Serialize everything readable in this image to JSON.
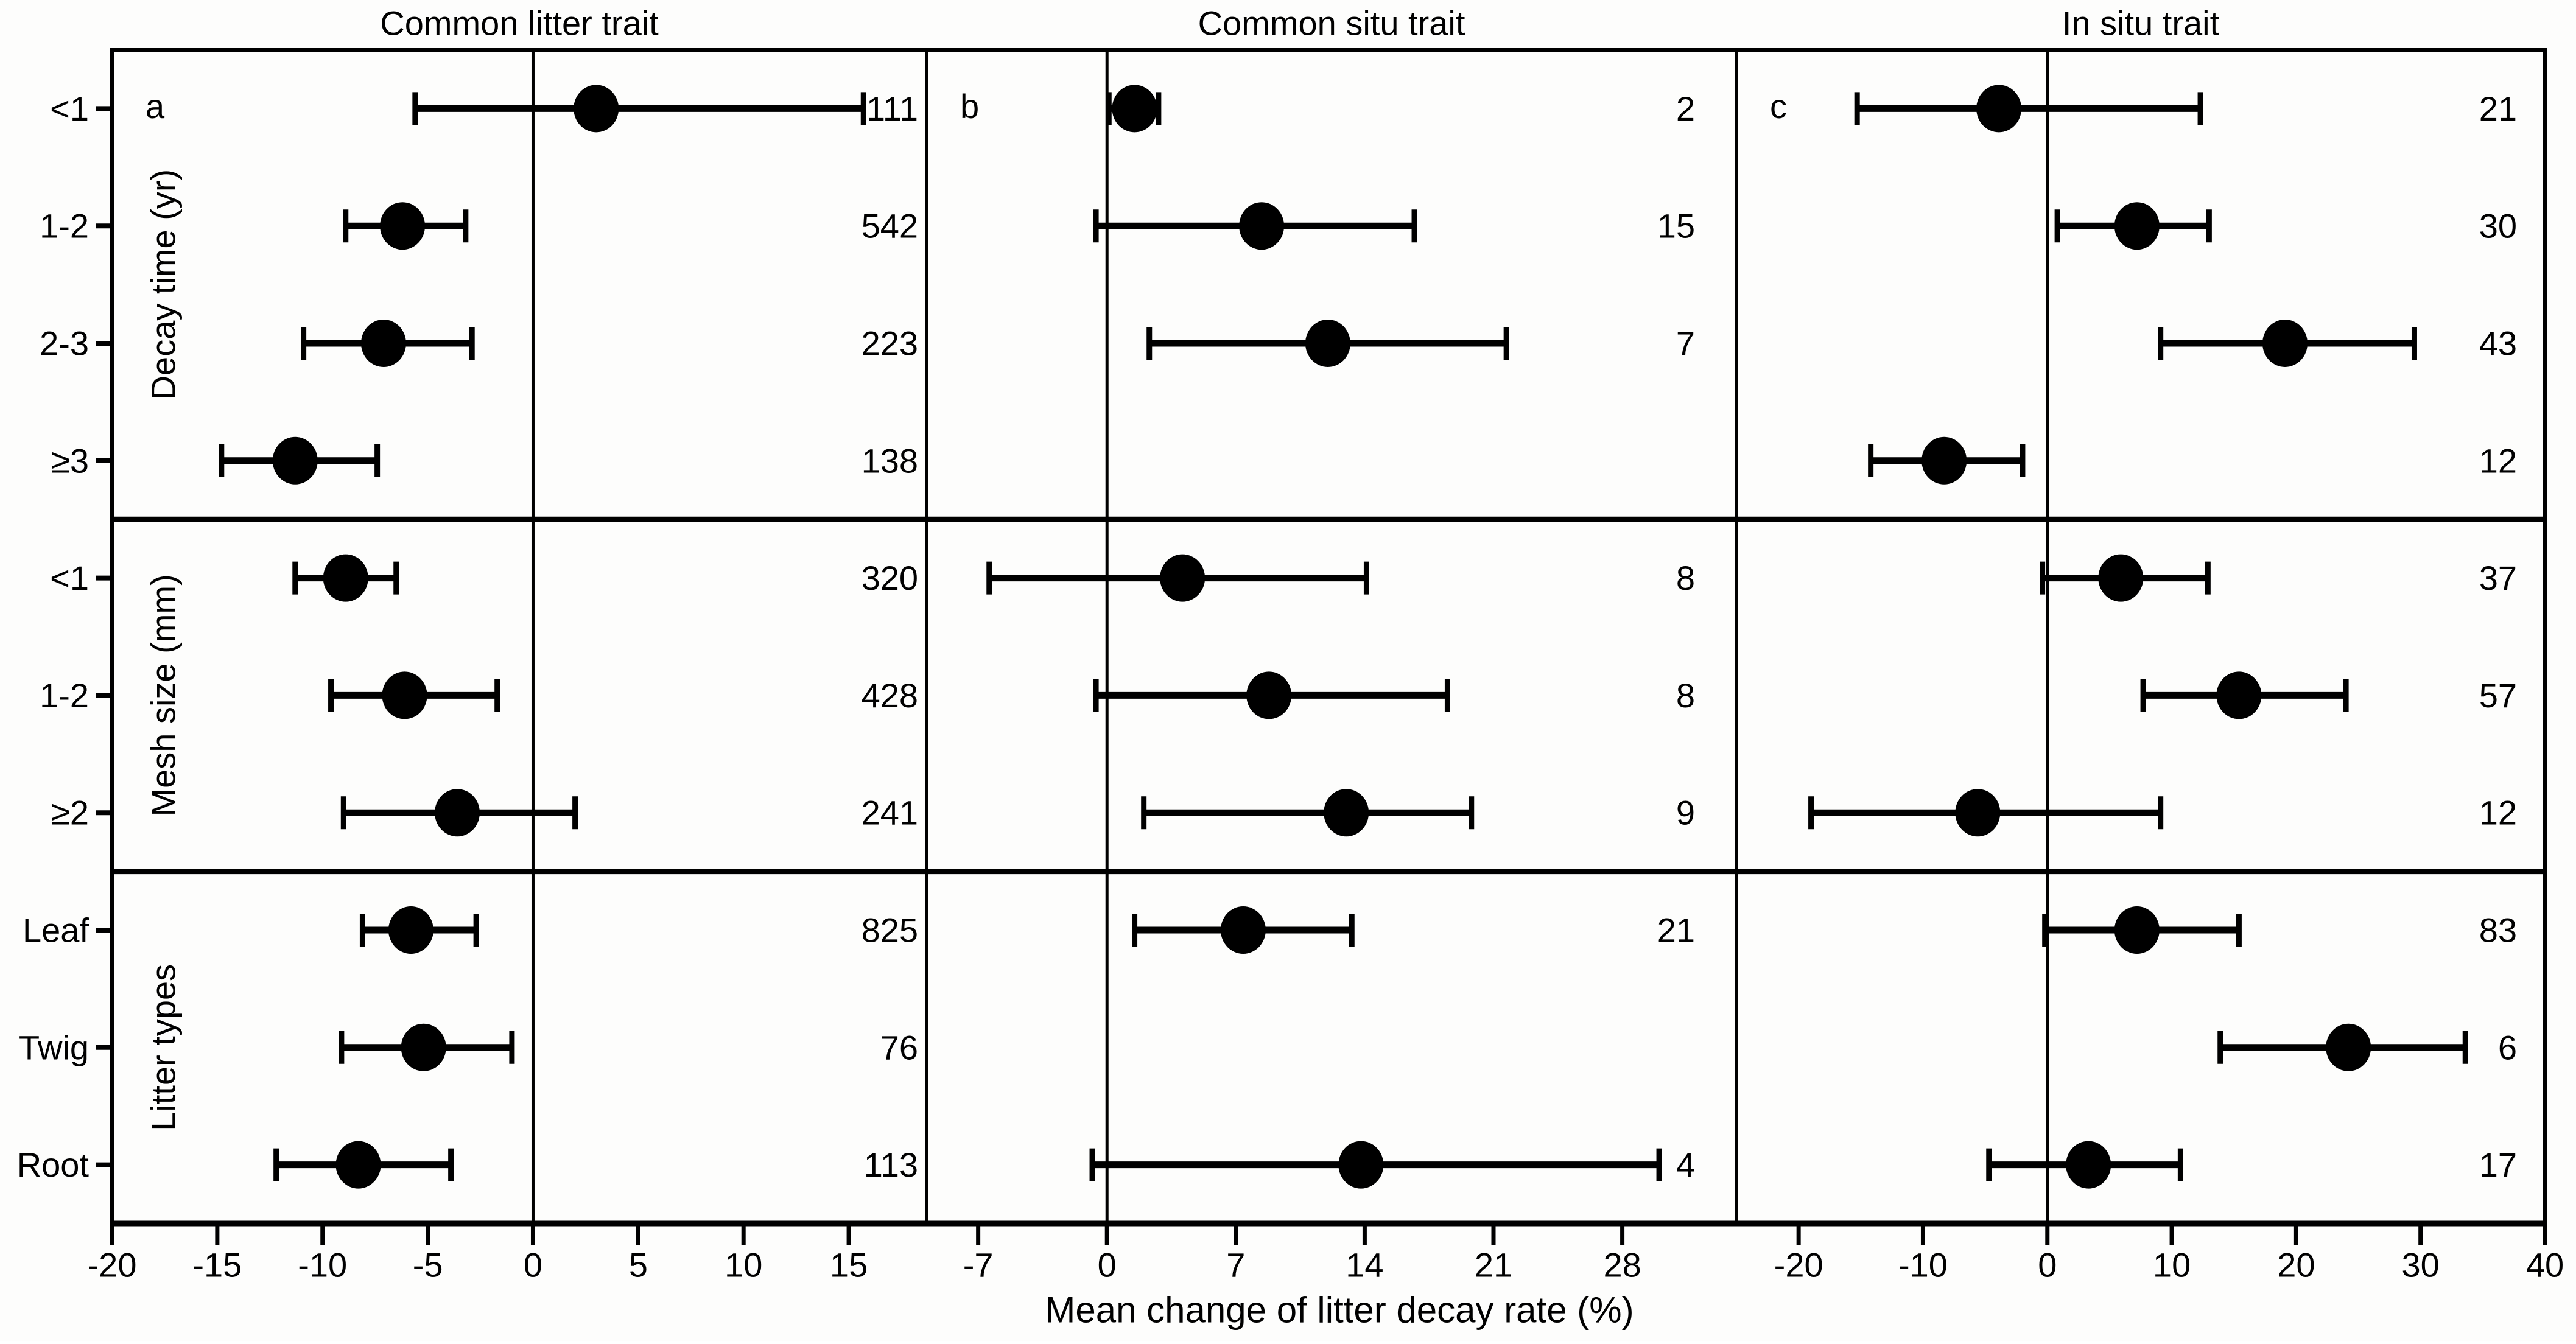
{
  "figure": {
    "background": "#fdfdfc",
    "ink_color": "#000000",
    "xlabel": "Mean change of litter decay rate (%)"
  },
  "chart_data": {
    "type": "scatter",
    "subtype": "forest-plot-with-error-bars",
    "title": "",
    "xlabel": "Mean change of litter decay rate (%)",
    "legend": "none",
    "grid": "off",
    "row_groups": [
      {
        "label": "Decay time (yr)",
        "rows": [
          "<1",
          "1-2",
          "2-3",
          "≥3"
        ]
      },
      {
        "label": "Mesh size (mm)",
        "rows": [
          "<1",
          "1-2",
          "≥2"
        ]
      },
      {
        "label": "Litter types",
        "rows": [
          "Leaf",
          "Twig",
          "Root"
        ]
      }
    ],
    "panels": [
      {
        "letter": "a",
        "title": "Common litter trait",
        "xlim": [
          -20,
          18.7
        ],
        "xticks": [
          -20,
          -15,
          -10,
          -5,
          0,
          5,
          10,
          15
        ],
        "points": [
          {
            "row": "<1",
            "mean": 3.0,
            "ci": [
              -5.6,
              15.7
            ],
            "n": 111
          },
          {
            "row": "1-2",
            "mean": -6.2,
            "ci": [
              -8.9,
              -3.2
            ],
            "n": 542
          },
          {
            "row": "2-3",
            "mean": -7.1,
            "ci": [
              -10.9,
              -2.9
            ],
            "n": 223
          },
          {
            "row": "≥3",
            "mean": -11.3,
            "ci": [
              -14.8,
              -7.4
            ],
            "n": 138
          },
          {
            "row": "<1",
            "mean": -8.9,
            "ci": [
              -11.3,
              -6.5
            ],
            "n": 320
          },
          {
            "row": "1-2",
            "mean": -6.1,
            "ci": [
              -9.6,
              -1.7
            ],
            "n": 428
          },
          {
            "row": "≥2",
            "mean": -3.6,
            "ci": [
              -9.0,
              2.0
            ],
            "n": 241
          },
          {
            "row": "Leaf",
            "mean": -5.8,
            "ci": [
              -8.1,
              -2.7
            ],
            "n": 825
          },
          {
            "row": "Twig",
            "mean": -5.2,
            "ci": [
              -9.1,
              -1.0
            ],
            "n": 76
          },
          {
            "row": "Root",
            "mean": -8.3,
            "ci": [
              -12.2,
              -3.9
            ],
            "n": 113
          }
        ]
      },
      {
        "letter": "b",
        "title": "Common situ trait",
        "xlim": [
          -9.8,
          34.2
        ],
        "xticks": [
          -7,
          0,
          7,
          14,
          21,
          28
        ],
        "points": [
          {
            "row": "<1",
            "mean": 1.5,
            "ci": [
              0.1,
              2.8
            ],
            "n": 2
          },
          {
            "row": "1-2",
            "mean": 8.4,
            "ci": [
              -0.6,
              16.7
            ],
            "n": 15
          },
          {
            "row": "2-3",
            "mean": 12.0,
            "ci": [
              2.3,
              21.7
            ],
            "n": 7
          },
          null,
          {
            "row": "<1",
            "mean": 4.1,
            "ci": [
              -6.4,
              14.1
            ],
            "n": 8
          },
          {
            "row": "1-2",
            "mean": 8.8,
            "ci": [
              -0.6,
              18.5
            ],
            "n": 8
          },
          {
            "row": "≥2",
            "mean": 13.0,
            "ci": [
              2.0,
              19.8
            ],
            "n": 9
          },
          {
            "row": "Leaf",
            "mean": 7.4,
            "ci": [
              1.5,
              13.3
            ],
            "n": 21
          },
          null,
          {
            "row": "Root",
            "mean": 13.8,
            "ci": [
              -0.8,
              30.0
            ],
            "n": 4
          }
        ]
      },
      {
        "letter": "c",
        "title": "In situ trait",
        "xlim": [
          -25,
          40
        ],
        "xticks": [
          -20,
          -10,
          0,
          10,
          20,
          30,
          40
        ],
        "points": [
          {
            "row": "<1",
            "mean": -3.9,
            "ci": [
              -15.3,
              12.3
            ],
            "n": 21
          },
          {
            "row": "1-2",
            "mean": 7.2,
            "ci": [
              0.8,
              13.0
            ],
            "n": 30
          },
          {
            "row": "2-3",
            "mean": 19.1,
            "ci": [
              9.1,
              29.5
            ],
            "n": 43
          },
          {
            "row": "≥3",
            "mean": -8.3,
            "ci": [
              -14.2,
              -2.0
            ],
            "n": 12
          },
          {
            "row": "<1",
            "mean": 5.9,
            "ci": [
              -0.4,
              12.9
            ],
            "n": 37
          },
          {
            "row": "1-2",
            "mean": 15.4,
            "ci": [
              7.7,
              24.0
            ],
            "n": 57
          },
          {
            "row": "≥2",
            "mean": -5.6,
            "ci": [
              -19.0,
              9.1
            ],
            "n": 12
          },
          {
            "row": "Leaf",
            "mean": 7.2,
            "ci": [
              -0.2,
              15.4
            ],
            "n": 83
          },
          {
            "row": "Twig",
            "mean": 24.2,
            "ci": [
              13.9,
              33.6
            ],
            "n": 6
          },
          {
            "row": "Root",
            "mean": 3.3,
            "ci": [
              -4.7,
              10.7
            ],
            "n": 17
          }
        ]
      }
    ]
  }
}
